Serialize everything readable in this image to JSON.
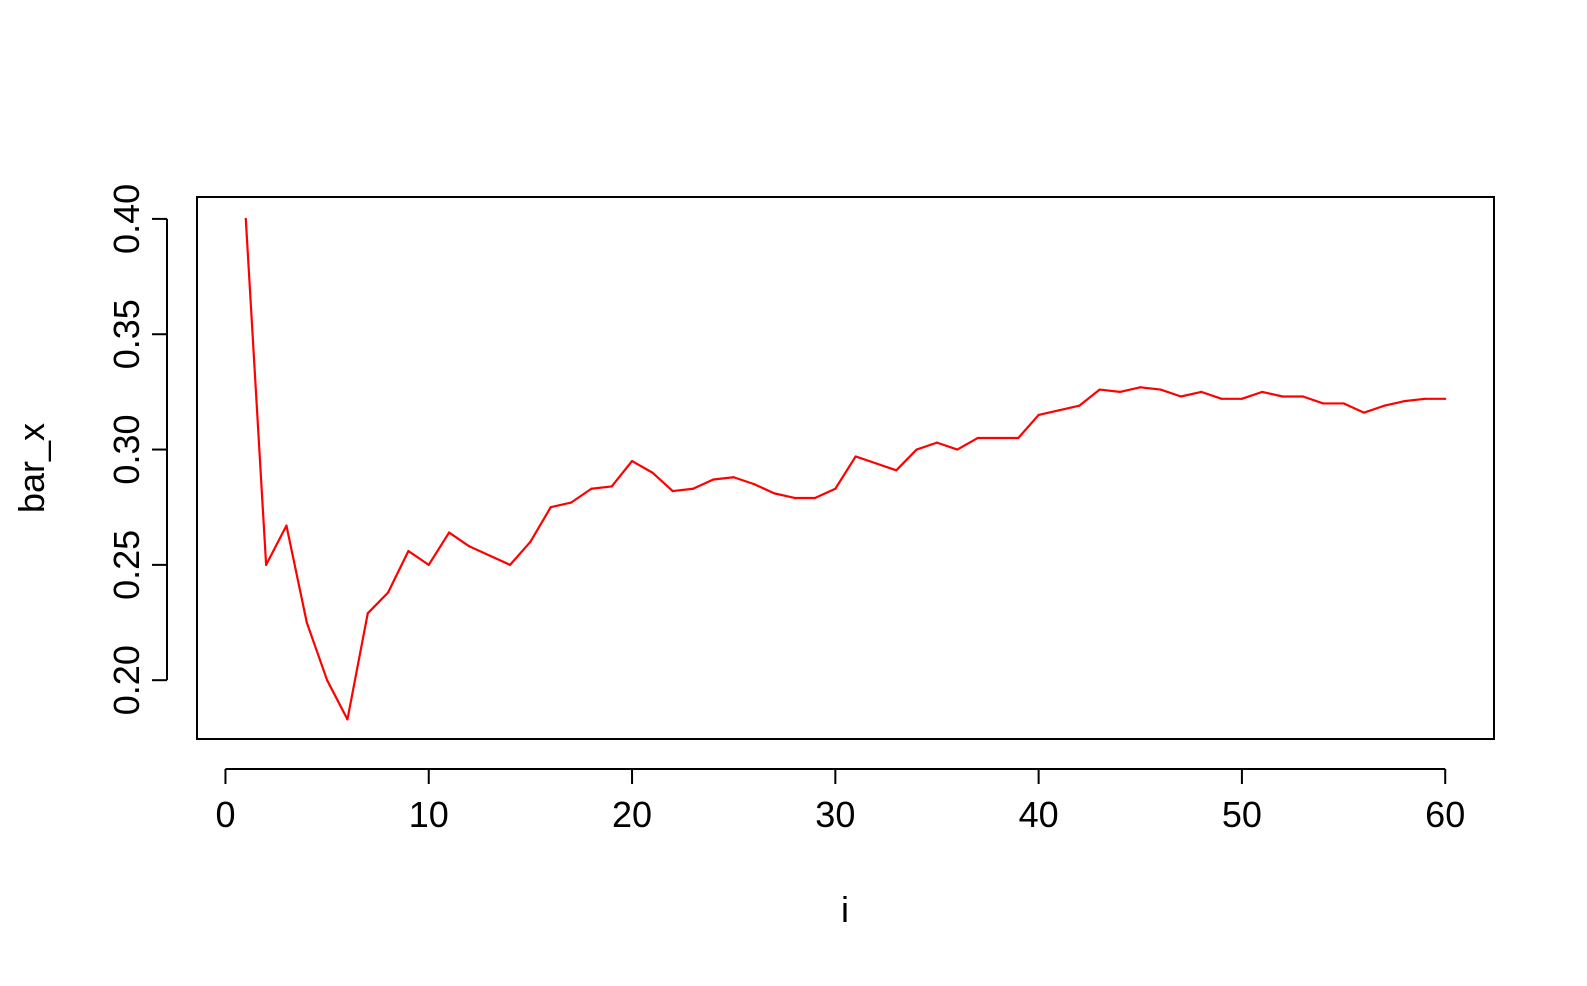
{
  "chart_data": {
    "type": "line",
    "title": "",
    "xlabel": "i",
    "ylabel": "bar_x",
    "xlim": [
      -1.4,
      62.4
    ],
    "ylim": [
      0.1745,
      0.4095
    ],
    "xticks": [
      0,
      10,
      20,
      30,
      40,
      50,
      60
    ],
    "xtick_labels": [
      "0",
      "10",
      "20",
      "30",
      "40",
      "50",
      "60"
    ],
    "yticks": [
      0.2,
      0.25,
      0.3,
      0.35,
      0.4
    ],
    "ytick_labels": [
      "0.20",
      "0.25",
      "0.30",
      "0.35",
      "0.40"
    ],
    "grid": false,
    "legend": "none",
    "series": [
      {
        "color": "#ff0000",
        "x": [
          1,
          2,
          3,
          4,
          5,
          6,
          7,
          8,
          9,
          10,
          11,
          12,
          13,
          14,
          15,
          16,
          17,
          18,
          19,
          20,
          21,
          22,
          23,
          24,
          25,
          26,
          27,
          28,
          29,
          30,
          31,
          32,
          33,
          34,
          35,
          36,
          37,
          38,
          39,
          40,
          41,
          42,
          43,
          44,
          45,
          46,
          47,
          48,
          49,
          50,
          51,
          52,
          53,
          54,
          55,
          56,
          57,
          58,
          59,
          60
        ],
        "y": [
          0.4,
          0.25,
          0.267,
          0.225,
          0.2,
          0.183,
          0.229,
          0.238,
          0.256,
          0.25,
          0.264,
          0.258,
          0.254,
          0.25,
          0.26,
          0.275,
          0.277,
          0.283,
          0.284,
          0.295,
          0.29,
          0.282,
          0.283,
          0.287,
          0.288,
          0.285,
          0.281,
          0.279,
          0.279,
          0.283,
          0.297,
          0.294,
          0.291,
          0.3,
          0.303,
          0.3,
          0.305,
          0.305,
          0.305,
          0.315,
          0.317,
          0.319,
          0.326,
          0.325,
          0.327,
          0.326,
          0.323,
          0.325,
          0.322,
          0.322,
          0.325,
          0.323,
          0.323,
          0.32,
          0.32,
          0.316,
          0.319,
          0.321,
          0.322,
          0.322
        ]
      }
    ]
  }
}
